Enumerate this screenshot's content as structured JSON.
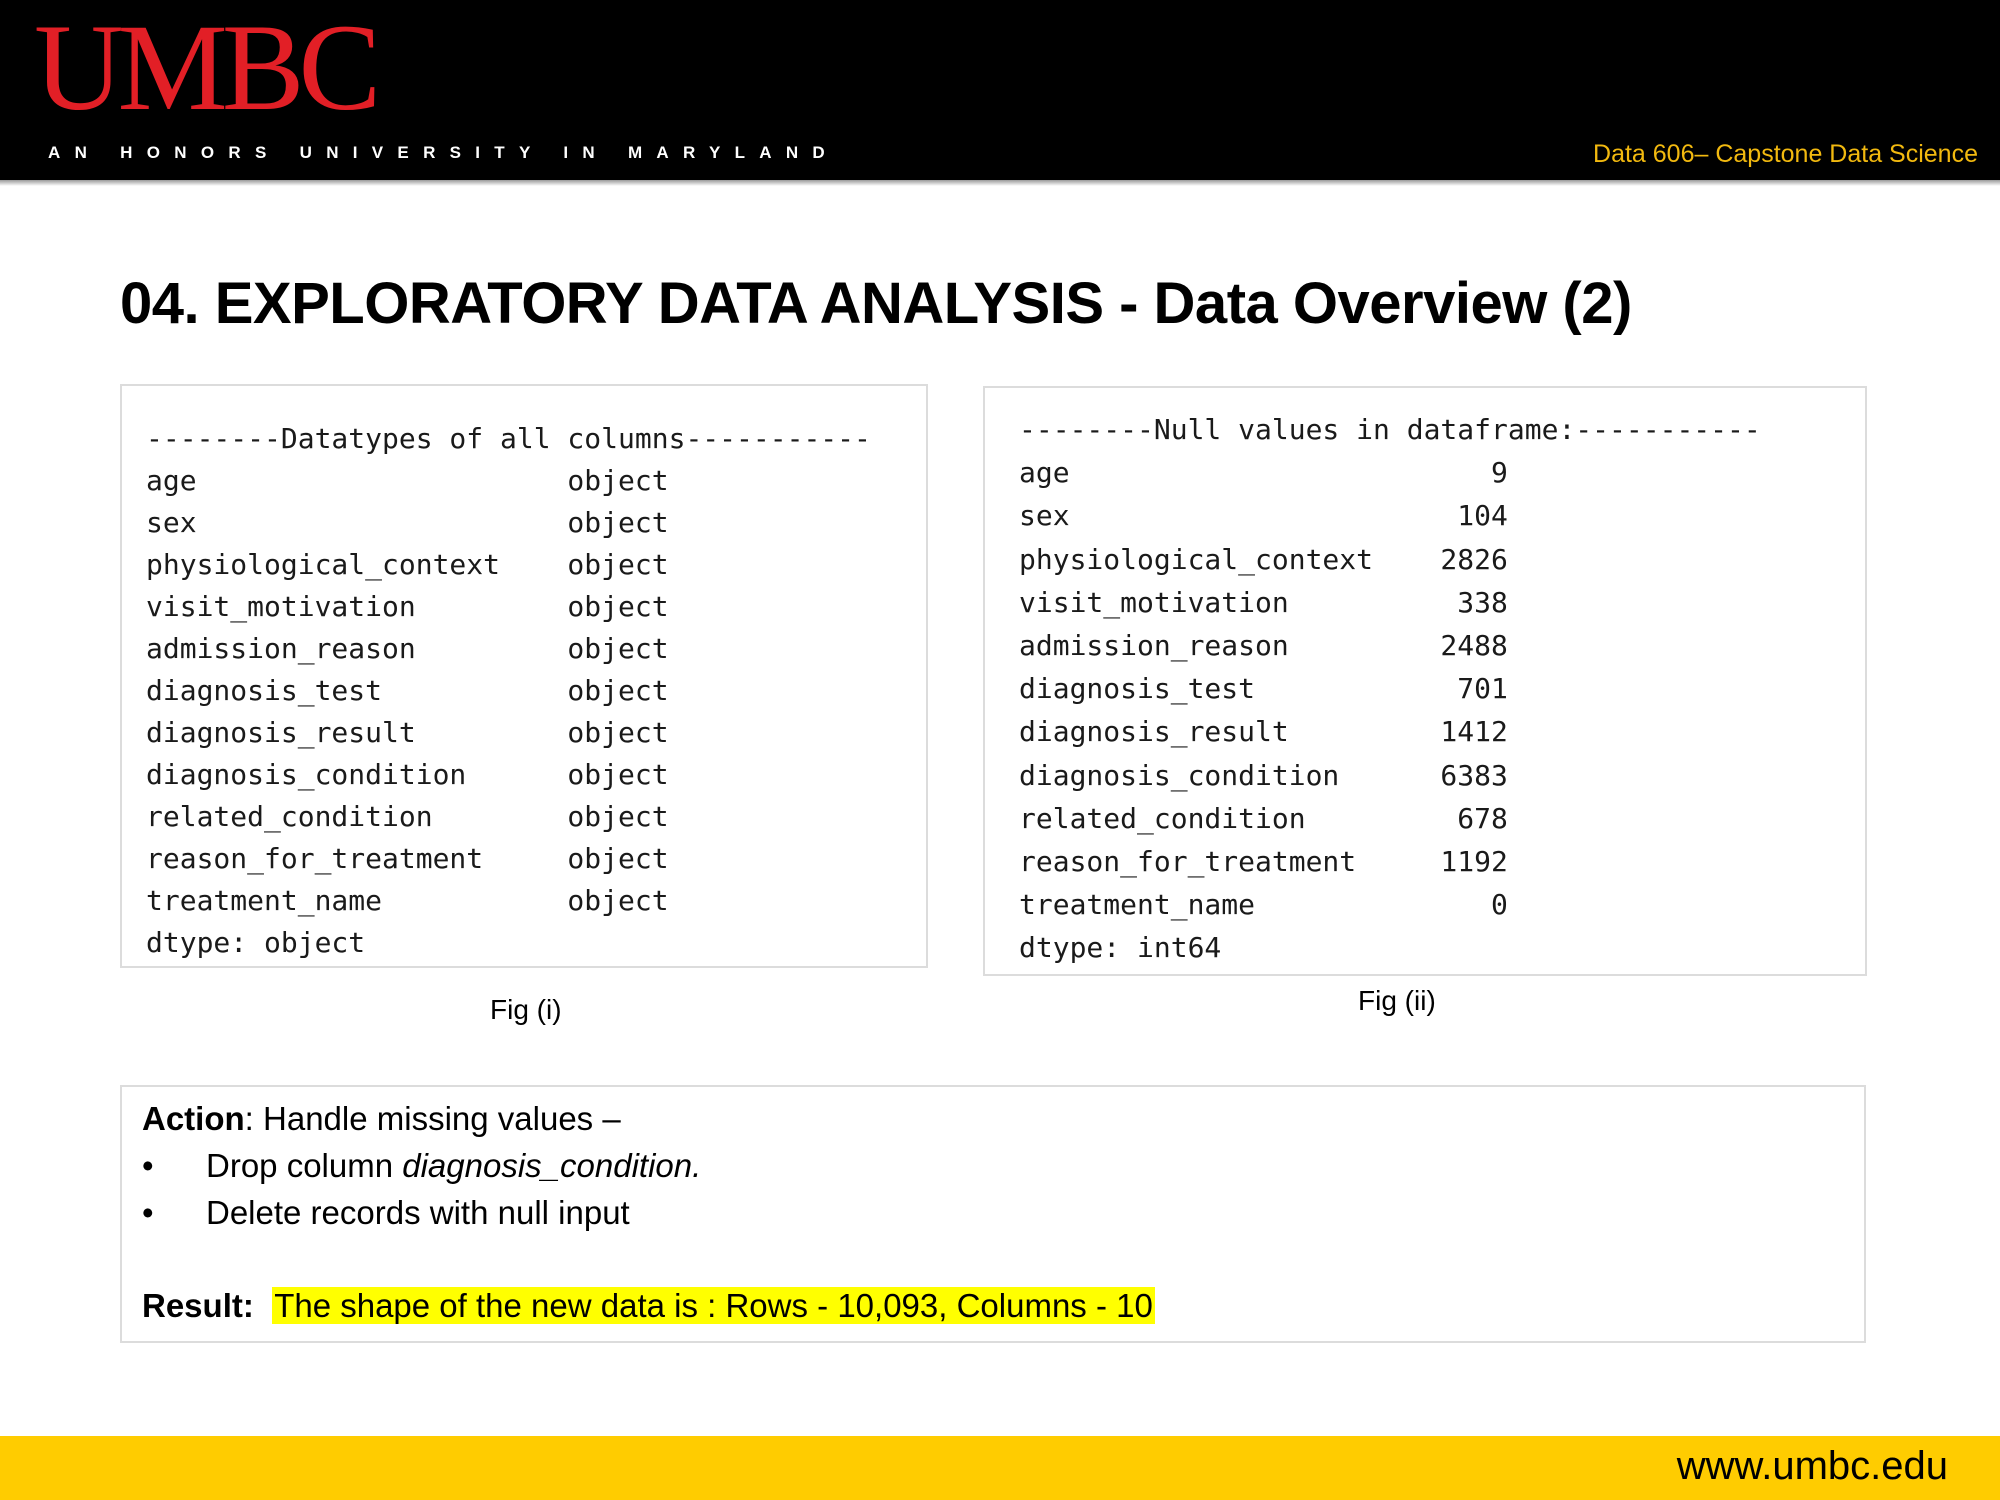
{
  "header": {
    "logo": "UMBC",
    "tagline": "AN HONORS UNIVERSITY IN MARYLAND",
    "course": "Data 606– Capstone Data Science"
  },
  "slide": {
    "title": "04. EXPLORATORY DATA ANALYSIS - Data Overview (2)"
  },
  "fig1": {
    "heading": "--------Datatypes of all columns-----------",
    "rows": [
      {
        "name": "age",
        "value": "object"
      },
      {
        "name": "sex",
        "value": "object"
      },
      {
        "name": "physiological_context",
        "value": "object"
      },
      {
        "name": "visit_motivation",
        "value": "object"
      },
      {
        "name": "admission_reason",
        "value": "object"
      },
      {
        "name": "diagnosis_test",
        "value": "object"
      },
      {
        "name": "diagnosis_result",
        "value": "object"
      },
      {
        "name": "diagnosis_condition",
        "value": "object"
      },
      {
        "name": "related_condition",
        "value": "object"
      },
      {
        "name": "reason_for_treatment",
        "value": "object"
      },
      {
        "name": "treatment_name",
        "value": "object"
      }
    ],
    "dtype": "dtype: object",
    "caption": "Fig (i)"
  },
  "fig2": {
    "heading": "--------Null values in dataframe:-----------",
    "rows": [
      {
        "name": "age",
        "value": "9"
      },
      {
        "name": "sex",
        "value": "104"
      },
      {
        "name": "physiological_context",
        "value": "2826"
      },
      {
        "name": "visit_motivation",
        "value": "338"
      },
      {
        "name": "admission_reason",
        "value": "2488"
      },
      {
        "name": "diagnosis_test",
        "value": "701"
      },
      {
        "name": "diagnosis_result",
        "value": "1412"
      },
      {
        "name": "diagnosis_condition",
        "value": "6383"
      },
      {
        "name": "related_condition",
        "value": "678"
      },
      {
        "name": "reason_for_treatment",
        "value": "1192"
      },
      {
        "name": "treatment_name",
        "value": "0"
      }
    ],
    "dtype": "dtype: int64",
    "caption": "Fig (ii)"
  },
  "action": {
    "label": "Action",
    "text": ":  Handle missing values –",
    "bullets": [
      {
        "prefix": "Drop column ",
        "emphasis": "diagnosis_condition."
      },
      {
        "prefix": "Delete records with null input",
        "emphasis": ""
      }
    ],
    "bullet_symbol": "•",
    "result_label": "Result:",
    "result_text": "The shape of the new data is : Rows - 10,093,  Columns - 10"
  },
  "footer": {
    "url": "www.umbc.edu"
  },
  "colors": {
    "header_bg": "#000000",
    "logo_red": "#e21f26",
    "course_gold": "#f2b90f",
    "footer_gold": "#ffcc00",
    "highlight_yellow": "#ffff00"
  }
}
